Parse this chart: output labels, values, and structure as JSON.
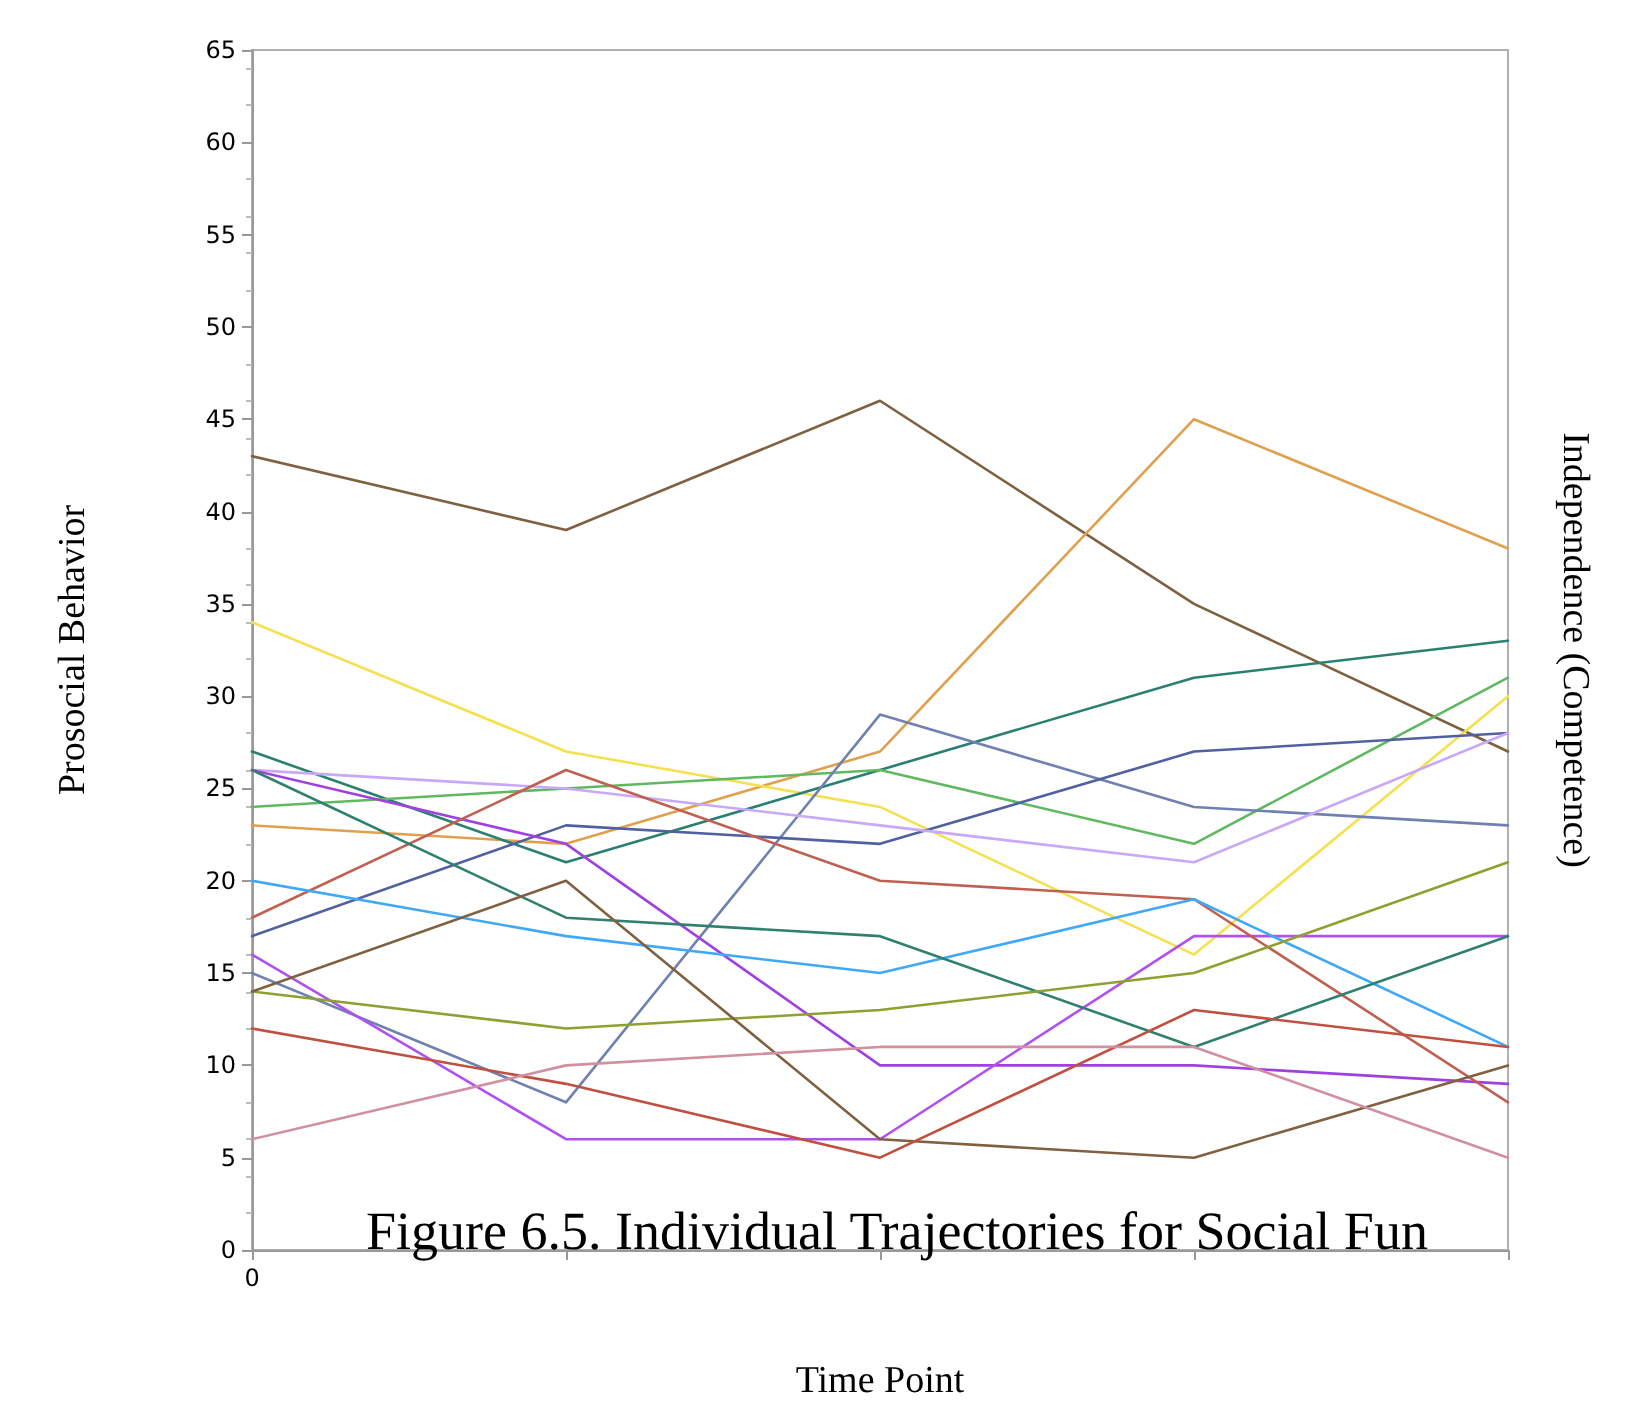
{
  "chart_data": {
    "type": "line",
    "xlabel": "Time Point",
    "ylabel": "Prosocial Behavior",
    "y2label": "Independence (Competence)",
    "categories": [
      "0",
      null,
      null,
      null,
      null
    ],
    "ylim": [
      0,
      65
    ],
    "yticks": [
      0,
      5,
      10,
      15,
      20,
      25,
      30,
      35,
      40,
      45,
      50,
      55,
      60,
      65
    ],
    "marker": "none",
    "line_style": "solid",
    "annotations": [
      "Figure 6.5. Individual Trajectories for Social Fun"
    ],
    "series": [
      {
        "color": "#7f6040",
        "values": [
          43,
          39,
          46,
          35,
          27
        ]
      },
      {
        "color": "#e0a050",
        "values": [
          23,
          22,
          27,
          45,
          38
        ]
      },
      {
        "color": "#f5e050",
        "values": [
          34,
          27,
          24,
          16,
          30
        ]
      },
      {
        "color": "#2a8070",
        "values": [
          27,
          21,
          26,
          31,
          33
        ]
      },
      {
        "color": "#60b860",
        "values": [
          24,
          25,
          26,
          22,
          31
        ]
      },
      {
        "color": "#7080b0",
        "values": [
          15,
          8,
          29,
          24,
          23
        ]
      },
      {
        "color": "#5060a0",
        "values": [
          17,
          23,
          22,
          27,
          28
        ]
      },
      {
        "color": "#c8a8f8",
        "values": [
          26,
          25,
          23,
          21,
          28
        ]
      },
      {
        "color": "#a040e0",
        "values": [
          26,
          22,
          10,
          10,
          9
        ]
      },
      {
        "color": "#b050f0",
        "values": [
          16,
          6,
          6,
          17,
          17
        ]
      },
      {
        "color": "#c06050",
        "values": [
          18,
          26,
          20,
          19,
          8
        ]
      },
      {
        "color": "#40a8f8",
        "values": [
          20,
          17,
          15,
          19,
          11
        ]
      },
      {
        "color": "#308070",
        "values": [
          26,
          18,
          17,
          11,
          17
        ]
      },
      {
        "color": "#90a030",
        "values": [
          14,
          12,
          13,
          15,
          21
        ]
      },
      {
        "color": "#806040",
        "values": [
          14,
          20,
          6,
          5,
          10
        ]
      },
      {
        "color": "#c05040",
        "values": [
          12,
          9,
          5,
          13,
          11
        ]
      },
      {
        "color": "#d090a0",
        "values": [
          6,
          10,
          11,
          11,
          5
        ]
      }
    ]
  }
}
